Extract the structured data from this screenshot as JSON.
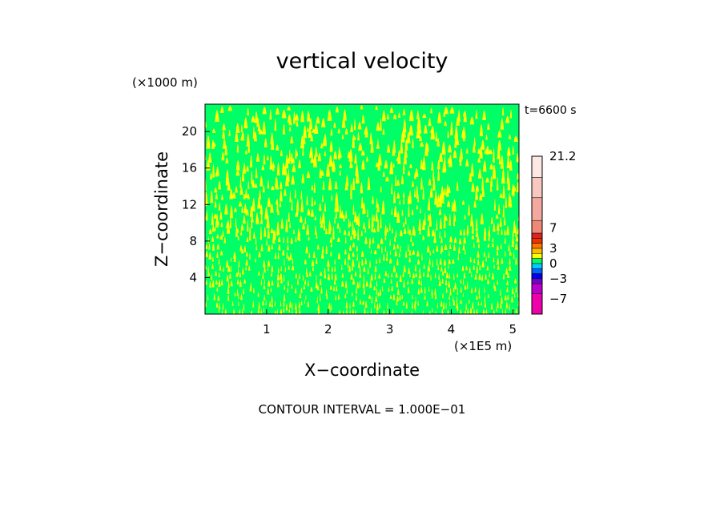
{
  "chart_data": {
    "type": "heatmap",
    "title": "vertical velocity",
    "xlabel": "X−coordinate",
    "ylabel": "Z−coordinate",
    "x_unit": "(×1E5 m)",
    "y_unit": "(×1000 m)",
    "time_label": "t=6600 s",
    "contour_interval": "CONTOUR INTERVAL = 1.000E−01",
    "xlim": [
      0,
      5.1
    ],
    "ylim": [
      0,
      23
    ],
    "x_ticks": [
      {
        "value": 1,
        "label": "1"
      },
      {
        "value": 2,
        "label": "2"
      },
      {
        "value": 3,
        "label": "3"
      },
      {
        "value": 4,
        "label": "4"
      },
      {
        "value": 5,
        "label": "5"
      }
    ],
    "y_ticks": [
      {
        "value": 4,
        "label": "4"
      },
      {
        "value": 8,
        "label": "8"
      },
      {
        "value": 12,
        "label": "12"
      },
      {
        "value": 16,
        "label": "16"
      },
      {
        "value": 20,
        "label": "20"
      }
    ],
    "field_colors": {
      "positive": "#ffff00",
      "negative": "#00ff66"
    },
    "colorbar": {
      "min": -10,
      "max": 21.2,
      "levels": [
        {
          "from": -10,
          "to": -6,
          "color": "#ee00aa"
        },
        {
          "from": -6,
          "to": -4,
          "color": "#bb00cc"
        },
        {
          "from": -4,
          "to": -3,
          "color": "#7700cc"
        },
        {
          "from": -3,
          "to": -2,
          "color": "#0000ee"
        },
        {
          "from": -2,
          "to": -1,
          "color": "#0066ff"
        },
        {
          "from": -1,
          "to": 0,
          "color": "#00ccff"
        },
        {
          "from": 0,
          "to": 1,
          "color": "#00ff66"
        },
        {
          "from": 1,
          "to": 2,
          "color": "#ffff00"
        },
        {
          "from": 2,
          "to": 3,
          "color": "#ffbb00"
        },
        {
          "from": 3,
          "to": 4,
          "color": "#ff7700"
        },
        {
          "from": 4,
          "to": 5,
          "color": "#ee3300"
        },
        {
          "from": 5,
          "to": 6,
          "color": "#dd2222"
        },
        {
          "from": 6,
          "to": 8.5,
          "color": "#ee8877"
        },
        {
          "from": 8.5,
          "to": 13,
          "color": "#f4a9a0"
        },
        {
          "from": 13,
          "to": 17,
          "color": "#f8c8c0"
        },
        {
          "from": 17,
          "to": 21.2,
          "color": "#fde8e4"
        }
      ],
      "labels": [
        {
          "value": 21.2,
          "label": "21.2"
        },
        {
          "value": 7,
          "label": "7"
        },
        {
          "value": 3,
          "label": "3"
        },
        {
          "value": 0,
          "label": "0"
        },
        {
          "value": -3,
          "label": "−3"
        },
        {
          "value": -7,
          "label": "−7"
        }
      ]
    }
  }
}
